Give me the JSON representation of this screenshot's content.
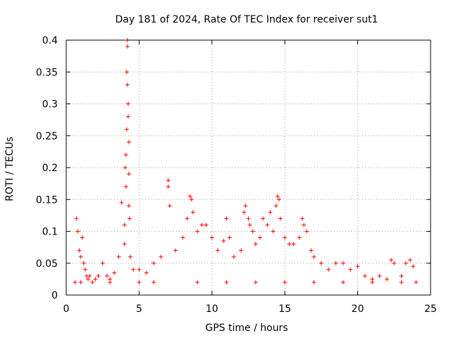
{
  "chart_data": {
    "type": "scatter",
    "title": "Day 181 of 2024, Rate Of TEC Index for receiver sut1",
    "xlabel": "GPS time / hours",
    "ylabel": "ROTI / TECUs",
    "xlim": [
      0,
      25
    ],
    "ylim": [
      0,
      0.4
    ],
    "xticks": [
      0,
      5,
      10,
      15,
      20,
      25
    ],
    "yticks": [
      0,
      0.05,
      0.1,
      0.15,
      0.2,
      0.25,
      0.3,
      0.35,
      0.4
    ],
    "xtick_labels": [
      "0",
      "5",
      "10",
      "15",
      "20",
      "25"
    ],
    "ytick_labels": [
      "0",
      "0.05",
      "0.1",
      "0.15",
      "0.2",
      "0.25",
      "0.3",
      "0.35",
      "0.4"
    ],
    "grid": true,
    "marker": "plus",
    "color": "#ff0000",
    "series": [
      {
        "name": "sut1",
        "x": [
          0.6,
          0.7,
          0.8,
          0.9,
          1.0,
          1.1,
          1.2,
          1.3,
          1.4,
          1.5,
          1.6,
          1.8,
          2.0,
          2.2,
          2.5,
          2.8,
          3.0,
          3.3,
          3.6,
          3.8,
          4.0,
          4.0,
          4.05,
          4.1,
          4.1,
          4.15,
          4.15,
          4.2,
          4.2,
          4.2,
          4.25,
          4.25,
          4.3,
          4.3,
          4.3,
          4.35,
          4.4,
          4.6,
          5.0,
          5.5,
          6.0,
          6.5,
          7.0,
          7.0,
          7.1,
          7.5,
          8.0,
          8.3,
          8.5,
          8.6,
          8.7,
          9.0,
          9.3,
          9.6,
          10.0,
          10.4,
          10.8,
          11.0,
          11.2,
          11.5,
          12.0,
          12.2,
          12.3,
          12.5,
          12.6,
          12.8,
          13.0,
          13.3,
          13.5,
          13.8,
          14.0,
          14.2,
          14.4,
          14.5,
          14.6,
          14.7,
          15.0,
          15.3,
          15.6,
          16.0,
          16.2,
          16.3,
          16.5,
          16.8,
          17.0,
          17.5,
          18.0,
          18.5,
          19.0,
          19.5,
          20.0,
          20.5,
          21.0,
          21.5,
          22.0,
          22.3,
          22.5,
          23.0,
          23.3,
          23.6,
          23.8,
          24.0,
          1.0,
          3.0,
          5.0,
          6.0,
          9.0,
          11.0,
          13.0,
          15.0,
          17.0,
          19.0,
          21.0,
          23.0
        ],
        "y": [
          0.02,
          0.12,
          0.1,
          0.07,
          0.06,
          0.09,
          0.05,
          0.04,
          0.03,
          0.025,
          0.03,
          0.02,
          0.025,
          0.03,
          0.05,
          0.03,
          0.025,
          0.035,
          0.06,
          0.145,
          0.11,
          0.08,
          0.2,
          0.17,
          0.22,
          0.26,
          0.35,
          0.4,
          0.39,
          0.33,
          0.3,
          0.28,
          0.24,
          0.14,
          0.19,
          0.12,
          0.06,
          0.04,
          0.04,
          0.035,
          0.05,
          0.06,
          0.18,
          0.17,
          0.14,
          0.07,
          0.09,
          0.12,
          0.155,
          0.15,
          0.13,
          0.1,
          0.11,
          0.11,
          0.09,
          0.07,
          0.085,
          0.12,
          0.09,
          0.06,
          0.07,
          0.13,
          0.14,
          0.12,
          0.11,
          0.1,
          0.08,
          0.09,
          0.12,
          0.11,
          0.13,
          0.1,
          0.14,
          0.155,
          0.15,
          0.12,
          0.09,
          0.08,
          0.08,
          0.09,
          0.12,
          0.11,
          0.1,
          0.07,
          0.06,
          0.05,
          0.04,
          0.05,
          0.05,
          0.04,
          0.045,
          0.03,
          0.025,
          0.03,
          0.025,
          0.055,
          0.05,
          0.03,
          0.05,
          0.055,
          0.045,
          0.02,
          0.02,
          0.02,
          0.02,
          0.02,
          0.02,
          0.02,
          0.02,
          0.02,
          0.02,
          0.02,
          0.02,
          0.02
        ]
      }
    ]
  }
}
